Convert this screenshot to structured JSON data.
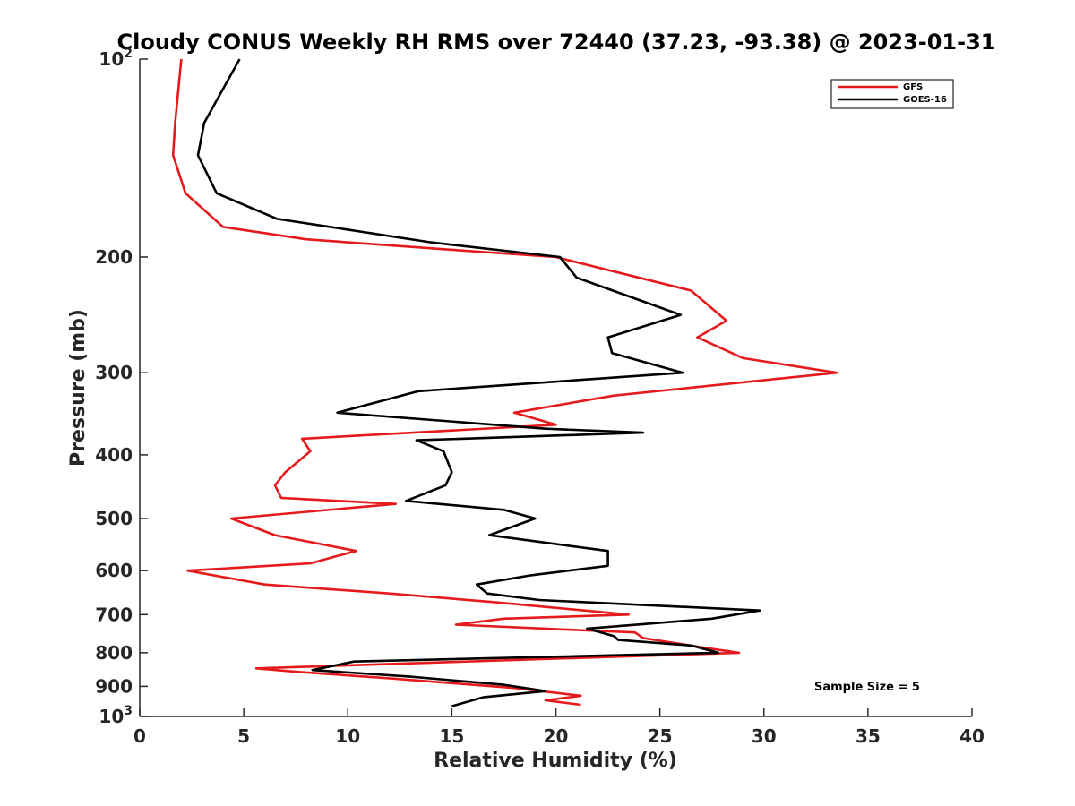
{
  "chart_data": {
    "type": "line",
    "title": "Cloudy CONUS Weekly RH RMS over 72440 (37.23, -93.38) @ 2023-01-31",
    "xlabel": "Relative Humidity (%)",
    "ylabel": "Pressure (mb)",
    "xlim": [
      0,
      40
    ],
    "ylim": [
      100,
      1000
    ],
    "y_scale": "log",
    "y_reversed": true,
    "grid": false,
    "legend_position": "top-right",
    "x_ticks": [
      "0",
      "5",
      "10",
      "15",
      "20",
      "25",
      "30",
      "35",
      "40"
    ],
    "y_ticks": [
      {
        "value": 100,
        "base": "10",
        "exp": "2"
      },
      {
        "value": 200,
        "label": "200"
      },
      {
        "value": 300,
        "label": "300"
      },
      {
        "value": 400,
        "label": "400"
      },
      {
        "value": 500,
        "label": "500"
      },
      {
        "value": 600,
        "label": "600"
      },
      {
        "value": 700,
        "label": "700"
      },
      {
        "value": 800,
        "label": "800"
      },
      {
        "value": 900,
        "label": "900"
      },
      {
        "value": 1000,
        "base": "10",
        "exp": "3"
      }
    ],
    "series": [
      {
        "name": "GFS",
        "color": "#e41a1c",
        "points": [
          [
            2.0,
            100
          ],
          [
            1.7,
            125
          ],
          [
            1.6,
            140
          ],
          [
            2.2,
            160
          ],
          [
            4.0,
            180
          ],
          [
            8.0,
            188
          ],
          [
            15.0,
            195
          ],
          [
            20.0,
            200
          ],
          [
            26.5,
            225
          ],
          [
            28.2,
            250
          ],
          [
            26.8,
            265
          ],
          [
            29.0,
            285
          ],
          [
            33.5,
            300
          ],
          [
            22.8,
            325
          ],
          [
            18.0,
            345
          ],
          [
            20.0,
            360
          ],
          [
            7.8,
            378
          ],
          [
            8.2,
            395
          ],
          [
            7.0,
            425
          ],
          [
            6.5,
            445
          ],
          [
            6.8,
            465
          ],
          [
            12.3,
            475
          ],
          [
            4.4,
            500
          ],
          [
            6.5,
            530
          ],
          [
            10.4,
            560
          ],
          [
            9.5,
            570
          ],
          [
            8.2,
            585
          ],
          [
            2.3,
            600
          ],
          [
            6.0,
            630
          ],
          [
            12.0,
            650
          ],
          [
            17.0,
            670
          ],
          [
            23.5,
            700
          ],
          [
            17.5,
            710
          ],
          [
            15.2,
            725
          ],
          [
            21.5,
            740
          ],
          [
            23.8,
            745
          ],
          [
            24.2,
            760
          ],
          [
            27.0,
            785
          ],
          [
            28.8,
            800
          ],
          [
            5.6,
            845
          ],
          [
            7.5,
            855
          ],
          [
            12.0,
            875
          ],
          [
            18.0,
            905
          ],
          [
            21.2,
            930
          ],
          [
            19.5,
            945
          ],
          [
            21.2,
            960
          ]
        ]
      },
      {
        "name": "GOES-16",
        "color": "#000000",
        "points": [
          [
            4.8,
            100
          ],
          [
            3.1,
            125
          ],
          [
            2.8,
            140
          ],
          [
            3.7,
            160
          ],
          [
            6.6,
            175
          ],
          [
            14.0,
            190
          ],
          [
            20.2,
            200
          ],
          [
            21.0,
            215
          ],
          [
            26.0,
            245
          ],
          [
            22.5,
            265
          ],
          [
            22.7,
            280
          ],
          [
            26.1,
            300
          ],
          [
            13.4,
            320
          ],
          [
            9.5,
            345
          ],
          [
            19.5,
            365
          ],
          [
            24.2,
            370
          ],
          [
            13.3,
            380
          ],
          [
            14.6,
            395
          ],
          [
            15.0,
            425
          ],
          [
            14.7,
            445
          ],
          [
            12.8,
            470
          ],
          [
            17.5,
            485
          ],
          [
            19.0,
            500
          ],
          [
            16.8,
            530
          ],
          [
            22.5,
            560
          ],
          [
            22.5,
            590
          ],
          [
            18.8,
            610
          ],
          [
            16.2,
            630
          ],
          [
            16.7,
            650
          ],
          [
            19.2,
            665
          ],
          [
            29.8,
            690
          ],
          [
            27.5,
            710
          ],
          [
            21.5,
            735
          ],
          [
            22.8,
            755
          ],
          [
            23.0,
            765
          ],
          [
            26.5,
            780
          ],
          [
            27.8,
            800
          ],
          [
            10.3,
            825
          ],
          [
            8.3,
            850
          ],
          [
            13.0,
            870
          ],
          [
            17.5,
            895
          ],
          [
            19.5,
            915
          ],
          [
            16.5,
            935
          ],
          [
            15.0,
            965
          ]
        ]
      }
    ],
    "annotation": "Sample Size = 5"
  }
}
